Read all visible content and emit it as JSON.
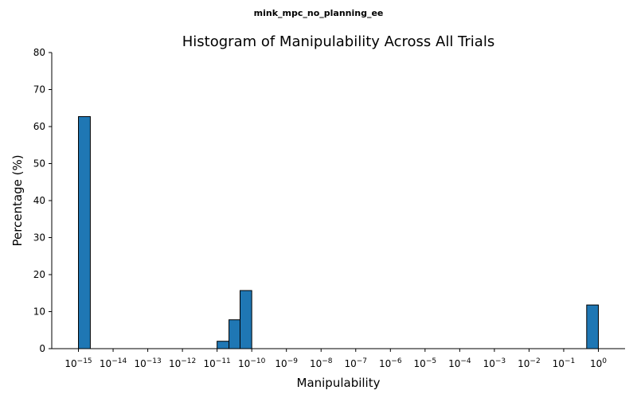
{
  "chart_data": {
    "type": "bar",
    "suptitle": "mink_mpc_no_planning_ee",
    "title": "Histogram of Manipulability Across All Trials",
    "xlabel": "Manipulability",
    "ylabel": "Percentage (%)",
    "x_scale": "log",
    "ylim": [
      0,
      80
    ],
    "yticks": [
      0,
      10,
      20,
      30,
      40,
      50,
      60,
      70,
      80
    ],
    "xtick_exponents": [
      -15,
      -14,
      -13,
      -12,
      -11,
      -10,
      -9,
      -8,
      -7,
      -6,
      -5,
      -4,
      -3,
      -2,
      -1,
      0
    ],
    "grid": false,
    "bar_color": "#1f77b4",
    "bars": [
      {
        "x_from": 1e-15,
        "x_to": 2.2e-15,
        "value": 62.7
      },
      {
        "x_from": 1e-11,
        "x_to": 2.2e-11,
        "value": 2.0
      },
      {
        "x_from": 2.2e-11,
        "x_to": 4.6e-11,
        "value": 7.8
      },
      {
        "x_from": 4.6e-11,
        "x_to": 1e-10,
        "value": 15.7
      },
      {
        "x_from": 0.46,
        "x_to": 1.0,
        "value": 11.8
      }
    ]
  }
}
